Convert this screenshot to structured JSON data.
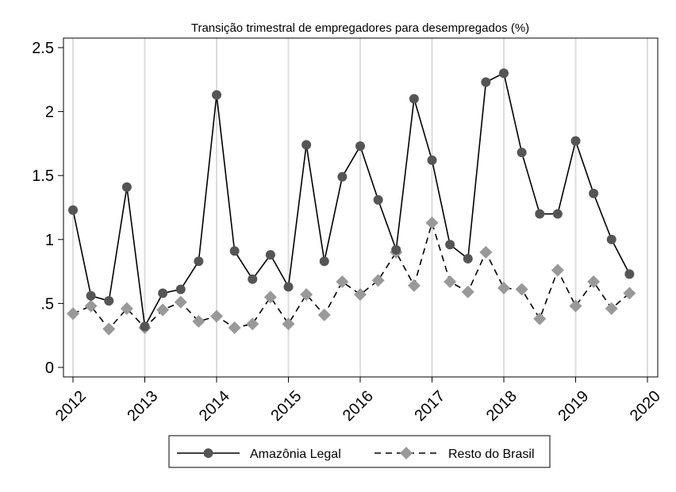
{
  "chart_data": {
    "type": "line",
    "title": "Transição trimestral de empregadores para desempregados (%)",
    "xlabel": "",
    "ylabel": "",
    "xlim": [
      2012,
      2020
    ],
    "ylim": [
      0,
      2.5
    ],
    "x_ticks": [
      2012,
      2013,
      2014,
      2015,
      2016,
      2017,
      2018,
      2019,
      2020
    ],
    "x_tick_labels": [
      "2012",
      "2013",
      "2014",
      "2015",
      "2016",
      "2017",
      "2018",
      "2019",
      "2020"
    ],
    "y_ticks": [
      0,
      0.5,
      1,
      1.5,
      2,
      2.5
    ],
    "y_tick_labels": [
      "0",
      ".5",
      "1",
      "1.5",
      "2",
      "2.5"
    ],
    "grid": "vertical",
    "legend_position": "bottom",
    "x": [
      2012.0,
      2012.25,
      2012.5,
      2012.75,
      2013.0,
      2013.25,
      2013.5,
      2013.75,
      2014.0,
      2014.25,
      2014.5,
      2014.75,
      2015.0,
      2015.25,
      2015.5,
      2015.75,
      2016.0,
      2016.25,
      2016.5,
      2016.75,
      2017.0,
      2017.25,
      2017.5,
      2017.75,
      2018.0,
      2018.25,
      2018.5,
      2018.75,
      2019.0,
      2019.25,
      2019.5,
      2019.75
    ],
    "series": [
      {
        "name": "Amazônia Legal",
        "color": "#555555",
        "style": "solid",
        "marker": "circle",
        "values": [
          1.23,
          0.56,
          0.52,
          1.41,
          0.32,
          0.58,
          0.61,
          0.83,
          2.13,
          0.91,
          0.69,
          0.88,
          0.63,
          1.74,
          0.83,
          1.49,
          1.73,
          1.31,
          0.92,
          2.1,
          1.62,
          0.96,
          0.85,
          2.23,
          2.3,
          1.68,
          1.2,
          1.2,
          1.77,
          1.36,
          1.0,
          0.73
        ]
      },
      {
        "name": "Resto do Brasil",
        "color": "#999999",
        "style": "dashed",
        "marker": "diamond",
        "values": [
          0.42,
          0.48,
          0.3,
          0.46,
          0.31,
          0.45,
          0.51,
          0.36,
          0.4,
          0.31,
          0.34,
          0.55,
          0.34,
          0.57,
          0.41,
          0.67,
          0.57,
          0.68,
          0.9,
          0.64,
          1.13,
          0.67,
          0.59,
          0.9,
          0.62,
          0.61,
          0.38,
          0.76,
          0.48,
          0.67,
          0.46,
          0.58
        ]
      }
    ]
  }
}
